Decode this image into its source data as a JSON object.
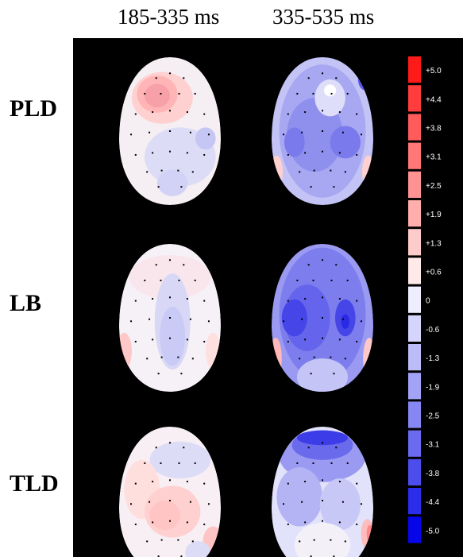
{
  "columns": [
    "185-335 ms",
    "335-535 ms"
  ],
  "rows": [
    "PLD",
    "LB",
    "TLD"
  ],
  "colorbar": {
    "labels": [
      "+5.0",
      "+4.4",
      "+3.8",
      "+3.1",
      "+2.5",
      "+1.9",
      "+1.3",
      "+0.6",
      "0",
      "-0.6",
      "-1.3",
      "-1.9",
      "-2.5",
      "-3.1",
      "-3.8",
      "-4.4",
      "-5.0"
    ],
    "colors": [
      "#ff1a1a",
      "#ff3d3d",
      "#ff5b5b",
      "#ff7777",
      "#ff9393",
      "#ffadad",
      "#ffcaca",
      "#ffe9e9",
      "#eeeefe",
      "#d5d5fb",
      "#bcbcf8",
      "#a2a2f6",
      "#8787f3",
      "#6b6bf0",
      "#4d4dee",
      "#2c2ceb",
      "#0606e8"
    ]
  },
  "heads": [
    {
      "id": "PLD-early",
      "base": "#f5eef3",
      "blobs": [
        [
          "#ffd0d0",
          -0.15,
          -0.45,
          0.6,
          0.35
        ],
        [
          "#ffb5b5",
          -0.25,
          -0.5,
          0.4,
          0.25
        ],
        [
          "#f7a0a8",
          -0.25,
          -0.48,
          0.25,
          0.16
        ],
        [
          "#dcdcf6",
          0.2,
          0.35,
          0.7,
          0.4
        ],
        [
          "#c6c6f4",
          0.7,
          0.1,
          0.2,
          0.15
        ],
        [
          "#d2d2f6",
          0.05,
          0.7,
          0.3,
          0.18
        ]
      ]
    },
    {
      "id": "PLD-late",
      "base": "#c3c3f5",
      "blobs": [
        [
          "#a7a7f2",
          0.0,
          0.0,
          0.85,
          0.9
        ],
        [
          "#8f8fee",
          -0.15,
          0.05,
          0.55,
          0.5
        ],
        [
          "#7a7aec",
          0.45,
          0.15,
          0.3,
          0.22
        ],
        [
          "#7a7aec",
          -0.55,
          0.15,
          0.2,
          0.2
        ],
        [
          "#dedefa",
          0.15,
          -0.45,
          0.3,
          0.25
        ],
        [
          "#ffffff",
          0.15,
          -0.55,
          0.12,
          0.08
        ],
        [
          "#5a5aea",
          0.85,
          -0.7,
          0.15,
          0.15
        ],
        [
          "#ffd0d0",
          -0.9,
          0.55,
          0.12,
          0.22
        ],
        [
          "#ffd0d0",
          0.9,
          0.55,
          0.12,
          0.22
        ]
      ]
    },
    {
      "id": "LB-early",
      "base": "#f6f1f6",
      "blobs": [
        [
          "#f8e6ec",
          0.0,
          -0.55,
          0.8,
          0.3
        ],
        [
          "#d8d8f6",
          0.05,
          0.05,
          0.35,
          0.65
        ],
        [
          "#cacaf6",
          0.05,
          0.25,
          0.25,
          0.4
        ],
        [
          "#ffc8c8",
          -0.9,
          0.45,
          0.15,
          0.25
        ],
        [
          "#ffe0e0",
          0.85,
          0.45,
          0.15,
          0.25
        ]
      ]
    },
    {
      "id": "LB-late",
      "base": "#9a9af2",
      "blobs": [
        [
          "#7d7dee",
          0.0,
          -0.05,
          0.85,
          0.9
        ],
        [
          "#6464ec",
          -0.3,
          0.0,
          0.45,
          0.45
        ],
        [
          "#4545e8",
          -0.55,
          0.0,
          0.25,
          0.25
        ],
        [
          "#4545e8",
          0.45,
          0.0,
          0.2,
          0.25
        ],
        [
          "#2a2ae6",
          0.45,
          0.05,
          0.08,
          0.1
        ],
        [
          "#c4c4f6",
          0.0,
          0.8,
          0.5,
          0.25
        ],
        [
          "#ffb8b8",
          -0.92,
          0.55,
          0.12,
          0.28
        ],
        [
          "#ff9898",
          -0.95,
          0.6,
          0.06,
          0.18
        ],
        [
          "#ffc8c8",
          0.92,
          0.55,
          0.12,
          0.28
        ]
      ]
    },
    {
      "id": "TLD-early",
      "base": "#f7eff4",
      "blobs": [
        [
          "#dcdcf6",
          0.2,
          -0.55,
          0.6,
          0.25
        ],
        [
          "#ffdede",
          -0.55,
          -0.15,
          0.35,
          0.4
        ],
        [
          "#ffd0d0",
          0.05,
          0.15,
          0.55,
          0.35
        ],
        [
          "#ffc4c4",
          -0.1,
          0.2,
          0.3,
          0.2
        ],
        [
          "#ffc4c4",
          0.85,
          0.55,
          0.2,
          0.2
        ],
        [
          "#dcdcf6",
          0.55,
          0.7,
          0.25,
          0.15
        ]
      ]
    },
    {
      "id": "TLD-late",
      "base": "#e2e2fb",
      "blobs": [
        [
          "#9a9af2",
          0.0,
          -0.6,
          0.85,
          0.35
        ],
        [
          "#6a6aec",
          0.0,
          -0.75,
          0.6,
          0.2
        ],
        [
          "#3c3ce8",
          0.0,
          -0.85,
          0.5,
          0.1
        ],
        [
          "#b4b4f5",
          -0.45,
          -0.05,
          0.45,
          0.4
        ],
        [
          "#c8c8f7",
          0.35,
          0.05,
          0.4,
          0.35
        ],
        [
          "#f4f0f8",
          0.0,
          0.6,
          0.55,
          0.3
        ],
        [
          "#ffbcbc",
          0.88,
          0.45,
          0.12,
          0.2
        ],
        [
          "#ff8888",
          0.93,
          0.45,
          0.06,
          0.12
        ]
      ]
    }
  ],
  "electrode_color": "#000000"
}
